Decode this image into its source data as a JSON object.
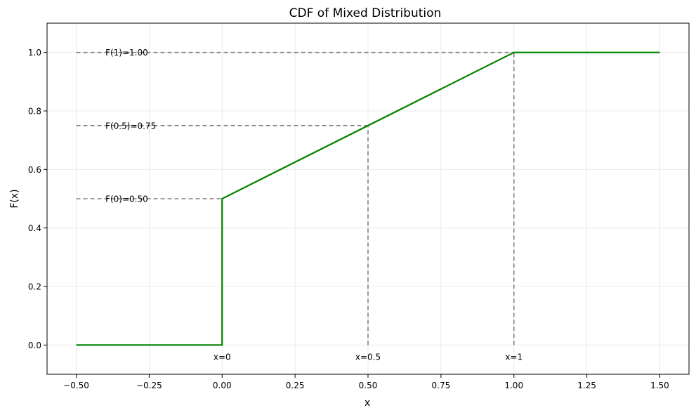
{
  "chart_data": {
    "type": "line",
    "title": "CDF of Mixed Distribution",
    "xlabel": "x",
    "ylabel": "F(x)",
    "xlim": [
      -0.6,
      1.6
    ],
    "ylim": [
      -0.1,
      1.1
    ],
    "x_ticks": [
      -0.5,
      -0.25,
      0.0,
      0.25,
      0.5,
      0.75,
      1.0,
      1.25,
      1.5
    ],
    "x_tick_labels": [
      "−0.50",
      "−0.25",
      "0.00",
      "0.25",
      "0.50",
      "0.75",
      "1.00",
      "1.25",
      "1.50"
    ],
    "y_ticks": [
      0.0,
      0.2,
      0.4,
      0.6,
      0.8,
      1.0
    ],
    "y_tick_labels": [
      "0.0",
      "0.2",
      "0.4",
      "0.6",
      "0.8",
      "1.0"
    ],
    "grid": true,
    "series": [
      {
        "color": "#008000",
        "points": [
          [
            -0.5,
            0.0
          ],
          [
            0.0,
            0.0
          ],
          [
            0.0,
            0.5
          ],
          [
            1.0,
            1.0
          ],
          [
            1.5,
            1.0
          ]
        ]
      }
    ],
    "reference_lines": [
      {
        "x": 0.0,
        "y": 0.5,
        "y_label": "F(0)=0.50",
        "x_label": "x=0"
      },
      {
        "x": 0.5,
        "y": 0.75,
        "y_label": "F(0.5)=0.75",
        "x_label": "x=0.5"
      },
      {
        "x": 1.0,
        "y": 1.0,
        "y_label": "F(1)=1.00",
        "x_label": "x=1"
      }
    ],
    "reference_line_color": "#808080"
  }
}
